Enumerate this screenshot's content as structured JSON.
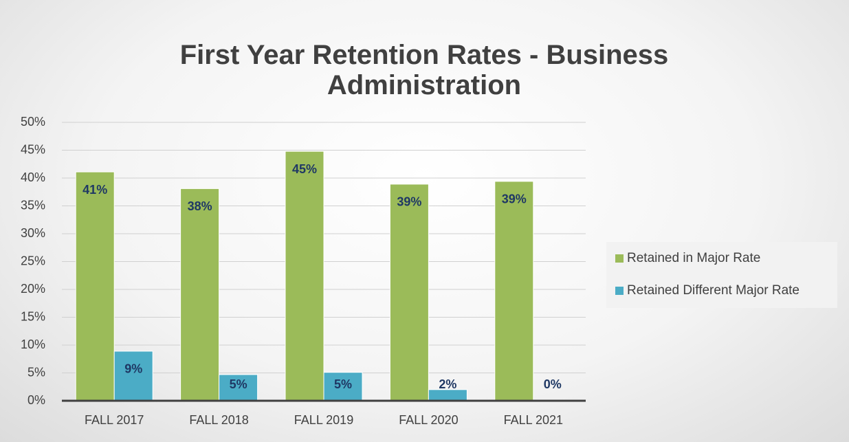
{
  "chart_data": {
    "type": "bar",
    "title": "First Year Retention Rates - Business Administration",
    "categories": [
      "FALL 2017",
      "FALL 2018",
      "FALL 2019",
      "FALL 2020",
      "FALL 2021"
    ],
    "series": [
      {
        "name": "Retained in Major Rate",
        "color": "#9bbb59",
        "values": [
          41.1,
          38.1,
          44.8,
          38.9,
          39.4
        ],
        "value_labels": [
          "41%",
          "38%",
          "45%",
          "39%",
          "39%"
        ]
      },
      {
        "name": "Retained Different Major Rate",
        "color": "#4bacc6",
        "values": [
          8.9,
          4.7,
          5.1,
          2.0,
          0
        ],
        "value_labels": [
          "9%",
          "5%",
          "5%",
          "2%",
          "0%"
        ]
      }
    ],
    "ylim": [
      0,
      50
    ],
    "yticks": [
      {
        "value": 0,
        "label": "0%"
      },
      {
        "value": 5,
        "label": "5%"
      },
      {
        "value": 10,
        "label": "10%"
      },
      {
        "value": 15,
        "label": "15%"
      },
      {
        "value": 20,
        "label": "20%"
      },
      {
        "value": 25,
        "label": "25%"
      },
      {
        "value": 30,
        "label": "30%"
      },
      {
        "value": 35,
        "label": "35%"
      },
      {
        "value": 40,
        "label": "40%"
      },
      {
        "value": 45,
        "label": "45%"
      },
      {
        "value": 50,
        "label": "50%"
      }
    ],
    "grid": true,
    "legend": "right"
  }
}
